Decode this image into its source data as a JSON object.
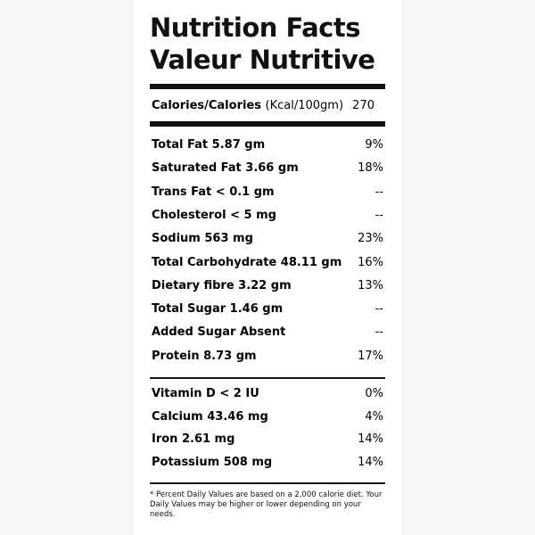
{
  "header": {
    "title": "Nutrition Facts",
    "subtitle": "Valeur Nutritive"
  },
  "calories": {
    "label": "Calories/Calories",
    "unit": "(Kcal/100gm)",
    "value": "270"
  },
  "nutrients": [
    {
      "name": "Total Fat 5.87 gm",
      "dv": "9%"
    },
    {
      "name": "Saturated Fat 3.66 gm",
      "dv": "18%"
    },
    {
      "name": "Trans Fat < 0.1 gm",
      "dv": "--"
    },
    {
      "name": "Cholesterol < 5 mg",
      "dv": "--"
    },
    {
      "name": "Sodium 563 mg",
      "dv": "23%"
    },
    {
      "name": "Total Carbohydrate 48.11 gm",
      "dv": "16%"
    },
    {
      "name": "Dietary fibre 3.22 gm",
      "dv": "13%"
    },
    {
      "name": "Total Sugar 1.46 gm",
      "dv": "--"
    },
    {
      "name": "Added Sugar Absent",
      "dv": "--"
    },
    {
      "name": "Protein 8.73 gm",
      "dv": "17%"
    }
  ],
  "vitamins": [
    {
      "name": "Vitamin D < 2 IU",
      "dv": "0%"
    },
    {
      "name": "Calcium 43.46 mg",
      "dv": "4%"
    },
    {
      "name": "Iron 2.61 mg",
      "dv": "14%"
    },
    {
      "name": "Potassium 508 mg",
      "dv": "14%"
    }
  ],
  "footnote": "* Percent Daily Values are based on a 2,000 calorie diet. Your Daily Values may be higher or lower depending on your needs."
}
